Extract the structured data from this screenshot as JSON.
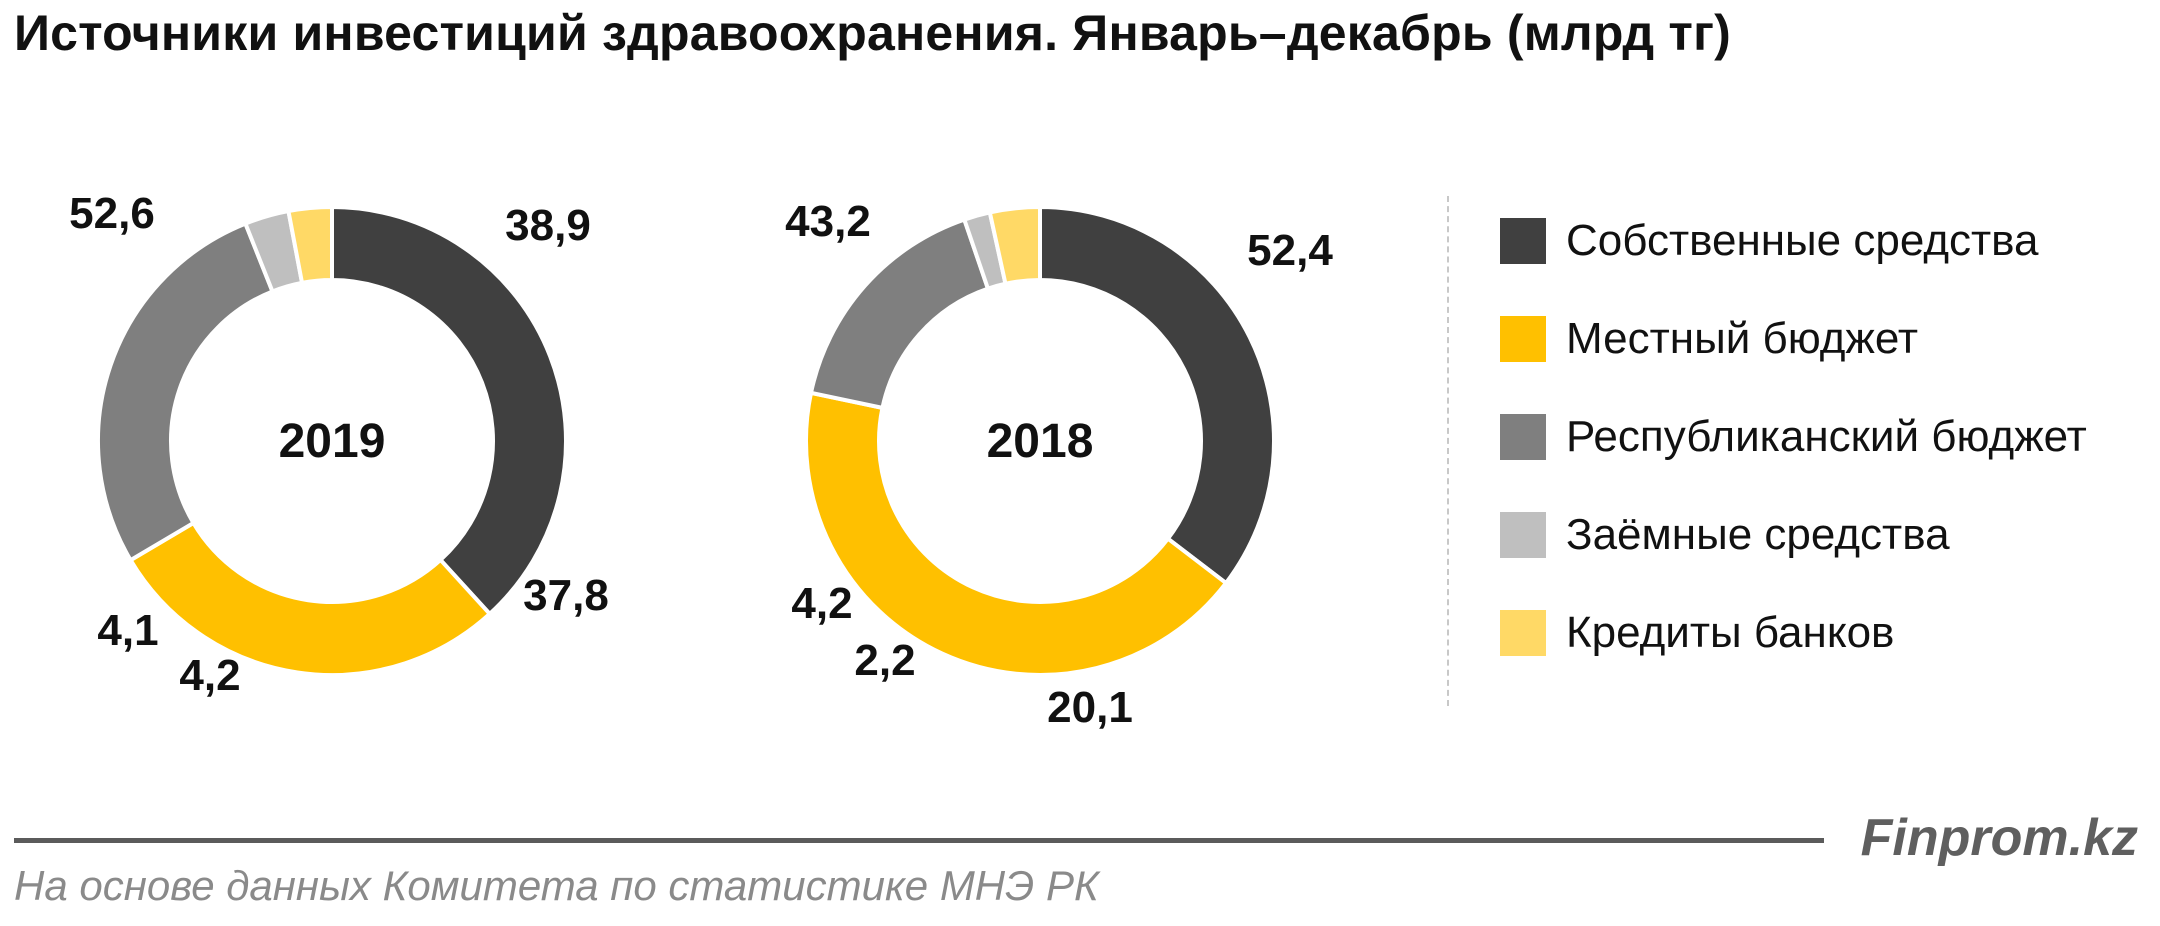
{
  "chart_data": {
    "type": "donut",
    "title": "Источники инвестиций здравоохранения. Январь–декабрь (млрд тг)",
    "categories": [
      "Собственные средства",
      "Местный бюджет",
      "Республиканский бюджет",
      "Заёмные средства",
      "Кредиты банков"
    ],
    "colors": [
      "#404040",
      "#ffc000",
      "#7f7f7f",
      "#bfbfbf",
      "#ffd966"
    ],
    "charts": [
      {
        "center_label": "2019",
        "values": [
          52.6,
          38.9,
          37.8,
          4.2,
          4.1
        ],
        "value_labels": [
          "52,6",
          "38,9",
          "37,8",
          "4,2",
          "4,1"
        ]
      },
      {
        "center_label": "2018",
        "values": [
          43.2,
          52.4,
          20.1,
          2.2,
          4.2
        ],
        "value_labels": [
          "43,2",
          "52,4",
          "20,1",
          "2,2",
          "4,2"
        ]
      }
    ],
    "legend_position": "right"
  },
  "footer": {
    "brand": "Finprom.kz",
    "source": "На основе данных  Комитета по статистике МНЭ РК"
  }
}
